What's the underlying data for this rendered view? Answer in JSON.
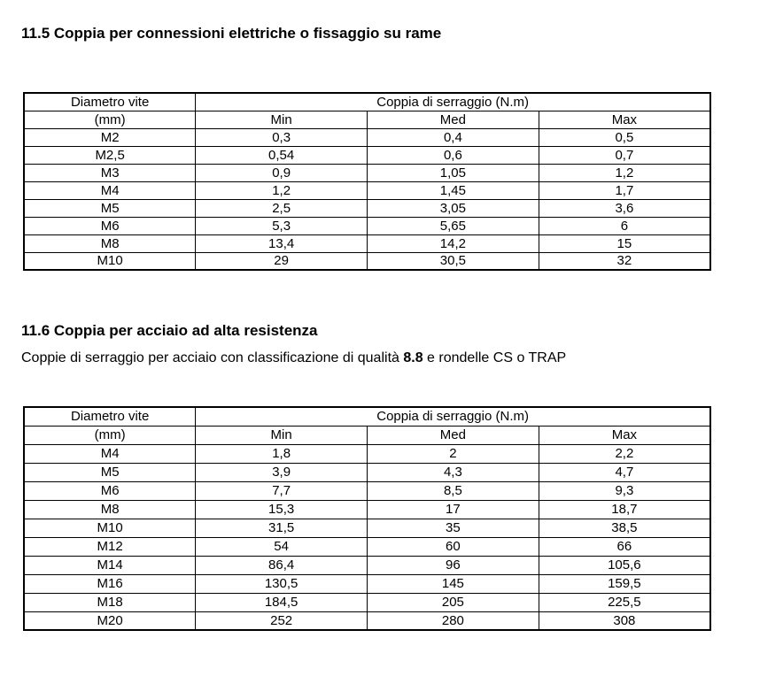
{
  "sections": [
    {
      "heading": "11.5 Coppia per connessioni elettriche o fissaggio su rame"
    },
    {
      "heading": "11.6 Coppia per acciaio ad alta resistenza",
      "description_prefix": "Coppie di serraggio per acciaio con classificazione di qualità ",
      "description_bold": "8.8",
      "description_suffix": " e rondelle CS o TRAP"
    }
  ],
  "tables": [
    {
      "col1_header_line1": "Diametro vite",
      "col1_header_line2": "(mm)",
      "group_header": "Coppia di serraggio (N.m)",
      "sub_headers": {
        "min": "Min",
        "med": "Med",
        "max": "Max"
      },
      "rows": [
        [
          "M2",
          "0,3",
          "0,4",
          "0,5"
        ],
        [
          "M2,5",
          "0,54",
          "0,6",
          "0,7"
        ],
        [
          "M3",
          "0,9",
          "1,05",
          "1,2"
        ],
        [
          "M4",
          "1,2",
          "1,45",
          "1,7"
        ],
        [
          "M5",
          "2,5",
          "3,05",
          "3,6"
        ],
        [
          "M6",
          "5,3",
          "5,65",
          "6"
        ],
        [
          "M8",
          "13,4",
          "14,2",
          "15"
        ],
        [
          "M10",
          "29",
          "30,5",
          "32"
        ]
      ]
    },
    {
      "col1_header_line1": "Diametro vite",
      "col1_header_line2": "(mm)",
      "group_header": "Coppia di serraggio (N.m)",
      "sub_headers": {
        "min": "Min",
        "med": "Med",
        "max": "Max"
      },
      "rows": [
        [
          "M4",
          "1,8",
          "2",
          "2,2"
        ],
        [
          "M5",
          "3,9",
          "4,3",
          "4,7"
        ],
        [
          "M6",
          "7,7",
          "8,5",
          "9,3"
        ],
        [
          "M8",
          "15,3",
          "17",
          "18,7"
        ],
        [
          "M10",
          "31,5",
          "35",
          "38,5"
        ],
        [
          "M12",
          "54",
          "60",
          "66"
        ],
        [
          "M14",
          "86,4",
          "96",
          "105,6"
        ],
        [
          "M16",
          "130,5",
          "145",
          "159,5"
        ],
        [
          "M18",
          "184,5",
          "205",
          "225,5"
        ],
        [
          "M20",
          "252",
          "280",
          "308"
        ]
      ]
    }
  ]
}
